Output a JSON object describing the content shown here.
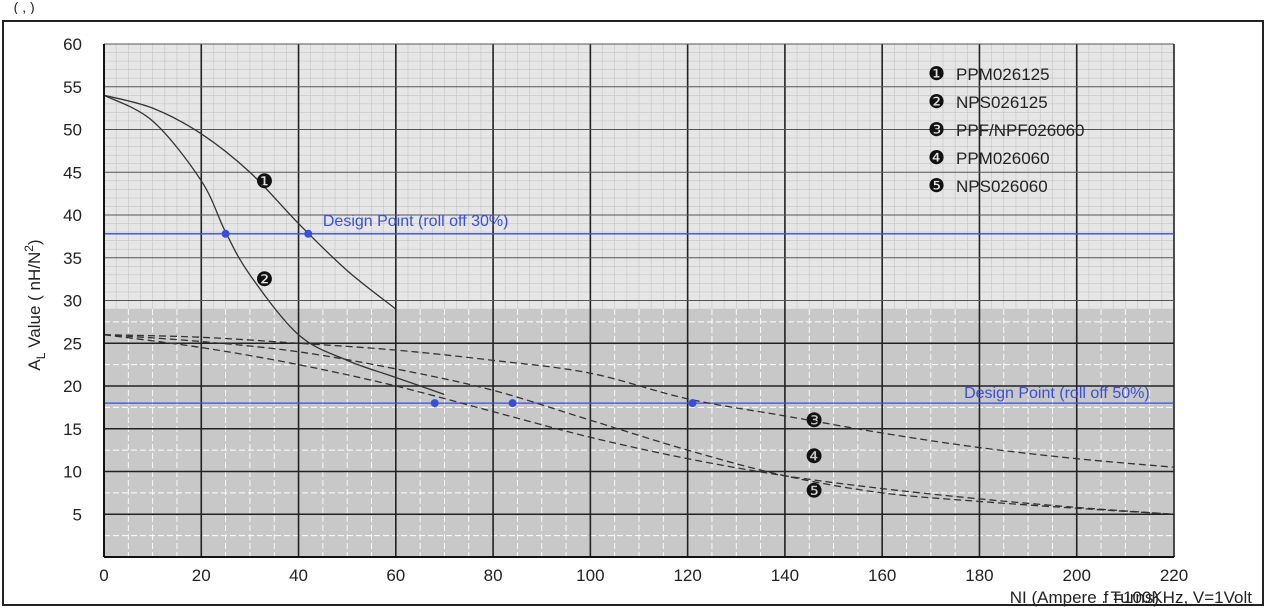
{
  "page_header": "_ (   ,    )",
  "chart_data": {
    "type": "line",
    "xlabel": "NI (Ampere . Turns)",
    "conditions": "f =100KHz, V=1Volt",
    "ylabel_main": "A",
    "ylabel_sub": "L",
    "ylabel_rest": " Value ( nH/N",
    "ylabel_sup": "2",
    "ylabel_end": ")",
    "xlim": [
      0,
      220
    ],
    "ylim": [
      0,
      60
    ],
    "x_ticks": [
      0,
      20,
      40,
      60,
      80,
      100,
      120,
      140,
      160,
      180,
      200,
      220
    ],
    "x_tick_labels": [
      "0",
      "20",
      "40",
      "60",
      "80",
      "100",
      "120",
      "140",
      "160",
      "180",
      "200",
      "220"
    ],
    "y_ticks": [
      5,
      10,
      15,
      20,
      25,
      30,
      35,
      40,
      45,
      50,
      55,
      60
    ],
    "y_tick_labels": [
      "5",
      "10",
      "15",
      "20",
      "25",
      "30",
      "35",
      "40",
      "45",
      "50",
      "55",
      "60"
    ],
    "grid": true,
    "legend_placement": "top-right",
    "colors": {
      "series": "#333333",
      "design": "#3a4fd8",
      "lower_panel": "#c8c8c8",
      "upper_panel": "#e6e6e6"
    },
    "series": [
      {
        "marker": "❶",
        "name": "PPM026125",
        "style": "solid",
        "x": [
          0,
          10,
          20,
          30,
          40,
          50,
          60
        ],
        "y": [
          54,
          52.5,
          49.5,
          45,
          39,
          33.5,
          29
        ]
      },
      {
        "marker": "❷",
        "name": "NPS026125",
        "style": "solid",
        "x": [
          0,
          10,
          20,
          25,
          30,
          40,
          50,
          60,
          70
        ],
        "y": [
          54,
          51,
          44,
          38,
          33,
          26,
          23,
          21,
          19
        ]
      },
      {
        "marker": "❸",
        "name": "PPF/NPF026060",
        "style": "dashed",
        "x": [
          0,
          20,
          40,
          60,
          80,
          100,
          120,
          140,
          160,
          180,
          200,
          220
        ],
        "y": [
          26,
          25.7,
          25,
          24.2,
          23,
          21.5,
          18.5,
          16.5,
          14.5,
          12.8,
          11.5,
          10.5
        ]
      },
      {
        "marker": "❹",
        "name": "PPM026060",
        "style": "dashed",
        "x": [
          0,
          20,
          40,
          60,
          80,
          100,
          120,
          140,
          160,
          180,
          200,
          220
        ],
        "y": [
          26,
          25.2,
          24,
          22,
          19.5,
          16,
          12.5,
          9.5,
          7.5,
          6.5,
          5.7,
          5
        ]
      },
      {
        "marker": "❺",
        "name": "NPS026060",
        "style": "dashed",
        "x": [
          0,
          20,
          40,
          60,
          80,
          100,
          120,
          140,
          160,
          180,
          200,
          220
        ],
        "y": [
          26,
          24.5,
          22.5,
          20,
          17,
          14,
          11.5,
          9.5,
          8,
          6.8,
          5.8,
          5
        ]
      }
    ],
    "design_points": [
      {
        "label": "Design Point (roll off 30%)",
        "y": 37.8,
        "points_x": [
          25,
          42
        ]
      },
      {
        "label": "Design Point (roll off 50%)",
        "y": 18,
        "points_x": [
          68,
          84,
          121
        ]
      }
    ],
    "curve_labels": [
      {
        "marker": "❶",
        "x": 33,
        "y": 44
      },
      {
        "marker": "❷",
        "x": 33,
        "y": 32.5
      },
      {
        "marker": "❸",
        "x": 146,
        "y": 16
      },
      {
        "marker": "❹",
        "x": 146,
        "y": 11.8
      },
      {
        "marker": "❺",
        "x": 146,
        "y": 7.8
      }
    ]
  }
}
